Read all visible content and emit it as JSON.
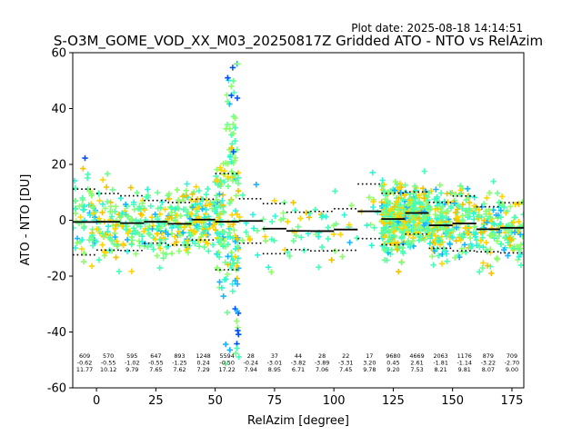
{
  "plot_date": "Plot date: 2025-08-18 14:14:51",
  "chart_data": {
    "type": "scatter",
    "title": "S-O3M_GOME_VOD_XX_M03_20250817Z Gridded ATO - NTO vs RelAzim",
    "xlabel": "RelAzim [degree]",
    "ylabel": "ATO - NTO [DU]",
    "xlim": [
      -10,
      180
    ],
    "ylim": [
      -60,
      60
    ],
    "x_ticks": [
      0,
      25,
      50,
      75,
      100,
      125,
      150,
      175
    ],
    "y_ticks": [
      -60,
      -40,
      -20,
      0,
      20,
      40,
      60
    ],
    "grid": false,
    "marker": "+",
    "bins": [
      {
        "x_start": -10,
        "x_end": 0,
        "count": "609",
        "mean": "-0.62",
        "std": "11.77"
      },
      {
        "x_start": 0,
        "x_end": 10,
        "count": "570",
        "mean": "-0.55",
        "std": "10.12"
      },
      {
        "x_start": 10,
        "x_end": 20,
        "count": "595",
        "mean": "-1.02",
        "std": "9.79"
      },
      {
        "x_start": 20,
        "x_end": 30,
        "count": "647",
        "mean": "-0.55",
        "std": "7.65"
      },
      {
        "x_start": 30,
        "x_end": 40,
        "count": "893",
        "mean": "-1.25",
        "std": "7.62"
      },
      {
        "x_start": 40,
        "x_end": 50,
        "count": "1248",
        "mean": "0.24",
        "std": "7.29"
      },
      {
        "x_start": 50,
        "x_end": 60,
        "count": "5594",
        "mean": "-0.50",
        "std": "17.22"
      },
      {
        "x_start": 60,
        "x_end": 70,
        "count": "28",
        "mean": "-0.24",
        "std": "7.94"
      },
      {
        "x_start": 70,
        "x_end": 80,
        "count": "37",
        "mean": "-3.01",
        "std": "8.95"
      },
      {
        "x_start": 80,
        "x_end": 90,
        "count": "44",
        "mean": "-3.82",
        "std": "6.71"
      },
      {
        "x_start": 90,
        "x_end": 100,
        "count": "28",
        "mean": "-3.89",
        "std": "7.06"
      },
      {
        "x_start": 100,
        "x_end": 110,
        "count": "22",
        "mean": "-3.31",
        "std": "7.45"
      },
      {
        "x_start": 110,
        "x_end": 120,
        "count": "17",
        "mean": "3.20",
        "std": "9.78"
      },
      {
        "x_start": 120,
        "x_end": 130,
        "count": "9680",
        "mean": "0.45",
        "std": "9.20"
      },
      {
        "x_start": 130,
        "x_end": 140,
        "count": "4669",
        "mean": "2.61",
        "std": "7.53"
      },
      {
        "x_start": 140,
        "x_end": 150,
        "count": "2063",
        "mean": "-1.81",
        "std": "8.21"
      },
      {
        "x_start": 150,
        "x_end": 160,
        "count": "1176",
        "mean": "-1.14",
        "std": "9.81"
      },
      {
        "x_start": 160,
        "x_end": 170,
        "count": "879",
        "mean": "-3.22",
        "std": "8.07"
      },
      {
        "x_start": 170,
        "x_end": 180,
        "count": "709",
        "mean": "-2.70",
        "std": "9.00"
      }
    ],
    "colors": {
      "scatter_palette": [
        "#ffd400",
        "#f2c200",
        "#8cff6a",
        "#6cff8e",
        "#46ffb5",
        "#2cf5d8",
        "#18b4ff",
        "#0050ff",
        "#0018e8"
      ],
      "mean_line": "#000000",
      "std_line": "#000000",
      "axes": "#000000"
    }
  }
}
